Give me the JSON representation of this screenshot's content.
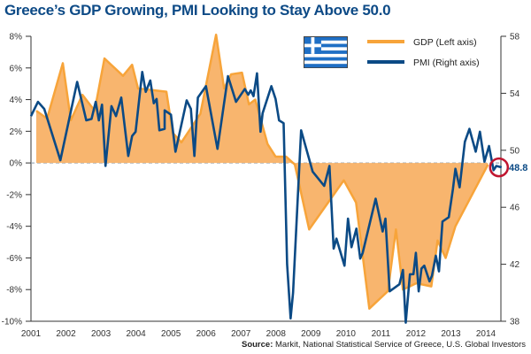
{
  "title": "Greece’s GDP Growing, PMI Looking to Stay Above 50.0",
  "source": {
    "label": "Source:",
    "text": "Markit, National Statistical Service of Greece, U.S. Global Investors"
  },
  "colors": {
    "gdp": "#f7a43a",
    "gdp_fill": "#f8b56e",
    "pmi": "#0b4a85",
    "highlight": "#c0152f",
    "zero_line": "#8899aa",
    "axis": "#333333",
    "flag_blue": "#1f6fc5"
  },
  "chart_data": {
    "type": "area",
    "title": "Greece’s GDP Growing, PMI Looking to Stay Above 50.0",
    "xlabel": "",
    "ylabel_left": "",
    "ylabel_right": "",
    "x_ticks": [
      "2001",
      "2002",
      "2003",
      "2004",
      "2005",
      "2006",
      "2007",
      "2008",
      "2009",
      "2010",
      "2011",
      "2012",
      "2013",
      "2014"
    ],
    "x_range": [
      2001,
      2014.55
    ],
    "y_left": {
      "range": [
        -10,
        8
      ],
      "ticks": [
        8,
        6,
        4,
        2,
        0,
        -2,
        -4,
        -6,
        -8,
        -10
      ],
      "tick_labels": [
        "8%",
        "6%",
        "4%",
        "2%",
        "0%",
        "-2%",
        "-4%",
        "-6%",
        "-8%",
        "-10%"
      ]
    },
    "y_right": {
      "range": [
        38,
        58
      ],
      "ticks": [
        58,
        54,
        50,
        46,
        42,
        38
      ],
      "tick_labels": [
        "58",
        "54",
        "50",
        "46",
        "42",
        "38"
      ]
    },
    "legend": {
      "placement": "top-right",
      "entries": [
        "GDP (Left axis)",
        "PMI (Right axis)"
      ]
    },
    "annotation": {
      "label": "48.8",
      "x": 2014.4,
      "value": 48.8,
      "axis": "right"
    },
    "reference_line": {
      "axis": "left",
      "value": 0,
      "style": "dashed"
    },
    "series": [
      {
        "name": "GDP (Left axis)",
        "axis": "left",
        "type": "area",
        "x": [
          2001.15,
          2001.46,
          2001.91,
          2002.14,
          2002.47,
          2002.82,
          2003.1,
          2003.63,
          2003.89,
          2004.06,
          2004.87,
          2005.05,
          2005.3,
          2005.84,
          2006.29,
          2006.52,
          2006.72,
          2007.03,
          2007.23,
          2007.41,
          2007.76,
          2007.99,
          2008.29,
          2008.54,
          2008.95,
          2009.94,
          2010.29,
          2010.67,
          2011.2,
          2011.43,
          2011.63,
          2012.01,
          2012.44,
          2012.62,
          2012.85,
          2013.13,
          2014.06
        ],
        "values": [
          3.3,
          2.8,
          6.3,
          2.7,
          4.3,
          3.3,
          6.6,
          5.5,
          6.2,
          4.7,
          4.5,
          1.9,
          1.3,
          3.1,
          8.1,
          4.7,
          5.6,
          5.7,
          3.7,
          4.0,
          1.2,
          0.4,
          0.4,
          -0.1,
          -4.2,
          -1.1,
          -2.5,
          -9.2,
          -8.1,
          -4.2,
          -8.0,
          -7.6,
          -7.8,
          -4.9,
          -6.0,
          -4.0,
          -0.1
        ]
      },
      {
        "name": "PMI (Right axis)",
        "axis": "right",
        "type": "line",
        "x": [
          2001.0,
          2001.2,
          2001.38,
          2001.84,
          2002.32,
          2002.58,
          2002.73,
          2002.85,
          2002.94,
          2003.03,
          2003.13,
          2003.3,
          2003.43,
          2003.58,
          2003.78,
          2003.89,
          2003.99,
          2004.18,
          2004.28,
          2004.41,
          2004.51,
          2004.59,
          2004.67,
          2004.82,
          2004.82,
          2005.0,
          2005.13,
          2005.45,
          2005.57,
          2005.67,
          2005.77,
          2006.0,
          2006.33,
          2006.63,
          2006.86,
          2007.11,
          2007.21,
          2007.28,
          2007.36,
          2007.46,
          2007.56,
          2007.62,
          2007.87,
          2007.99,
          2008.09,
          2008.22,
          2008.32,
          2008.42,
          2008.49,
          2008.72,
          2009.05,
          2009.38,
          2009.53,
          2009.65,
          2009.73,
          2009.96,
          2010.06,
          2010.16,
          2010.3,
          2010.41,
          2010.48,
          2010.85,
          2011.05,
          2011.13,
          2011.25,
          2011.53,
          2011.63,
          2011.71,
          2011.83,
          2011.93,
          2012.0,
          2012.08,
          2012.16,
          2012.24,
          2012.39,
          2012.46,
          2012.57,
          2012.66,
          2012.76,
          2012.94,
          2013.06,
          2013.13,
          2013.25,
          2013.4,
          2013.53,
          2013.71,
          2013.83,
          2013.96,
          2014.09,
          2014.22,
          2014.3,
          2014.45
        ],
        "values": [
          52.4,
          53.4,
          52.9,
          49.3,
          54.8,
          52.1,
          52.2,
          53.4,
          52.1,
          53.2,
          48.9,
          53.1,
          52.4,
          53.7,
          49.6,
          51.0,
          51.3,
          55.5,
          54.1,
          54.9,
          53.3,
          53.6,
          51.4,
          51.5,
          52.8,
          52.5,
          49.9,
          53.5,
          52.9,
          49.6,
          53.7,
          54.5,
          50.1,
          55.2,
          53.4,
          54.3,
          53.9,
          54.2,
          53.8,
          55.4,
          51.3,
          52.6,
          54.5,
          53.6,
          52.1,
          51.9,
          42.0,
          38.2,
          40.0,
          51.4,
          48.5,
          47.5,
          48.9,
          43.1,
          43.8,
          41.9,
          45.2,
          43.2,
          44.5,
          42.4,
          42.8,
          46.6,
          44.3,
          45.2,
          40.1,
          40.6,
          41.6,
          37.9,
          41.3,
          41.3,
          42.8,
          40.1,
          41.7,
          41.9,
          40.8,
          41.2,
          42.6,
          41.5,
          45.0,
          45.3,
          47.3,
          48.7,
          47.4,
          50.6,
          51.5,
          49.9,
          51.3,
          49.2,
          50.3,
          48.6,
          48.9,
          48.8
        ]
      }
    ]
  }
}
